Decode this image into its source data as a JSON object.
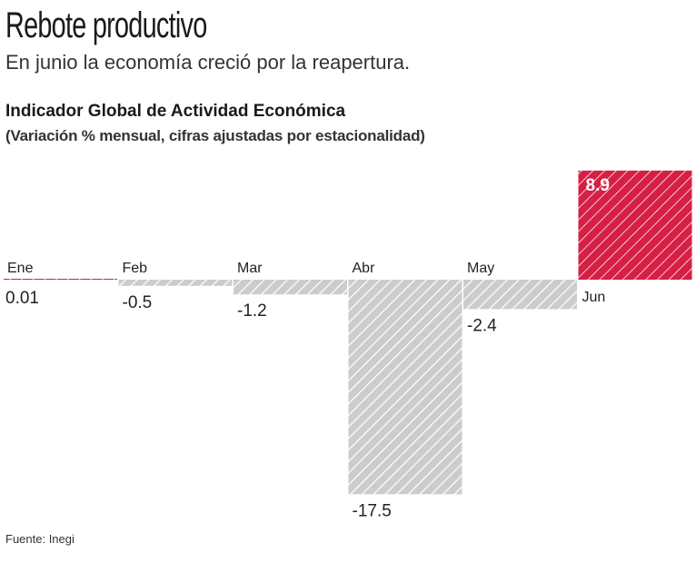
{
  "header": {
    "title": "Rebote productivo",
    "subtitle": "En junio la economía creció por la reapertura."
  },
  "chart_data": {
    "type": "bar",
    "title": "Indicador Global de Actividad Económica",
    "subtitle": "(Variación % mensual, cifras ajustadas por estacionalidad)",
    "categories": [
      "Ene",
      "Feb",
      "Mar",
      "Abr",
      "May",
      "Jun"
    ],
    "values": [
      0.01,
      -0.5,
      -1.2,
      -17.5,
      -2.4,
      8.9
    ],
    "value_labels": [
      "0.01",
      "-0.5",
      "-1.2",
      "-17.5",
      "-2.4",
      "8.9"
    ],
    "colors": {
      "negative": "#cccccc",
      "positive": "#d61f45",
      "hatch": "#ffffff"
    },
    "pattern": "diagonal-hatch",
    "grid": false
  },
  "footer": {
    "source": "Fuente: Inegi"
  }
}
